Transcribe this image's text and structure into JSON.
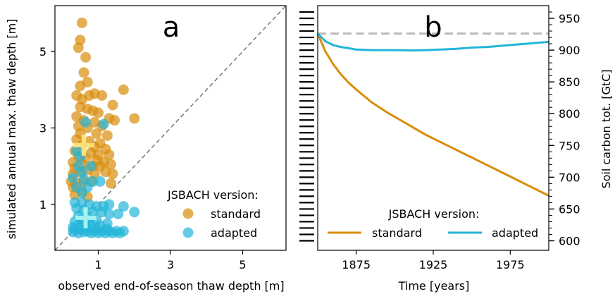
{
  "chart_data": [
    {
      "panel_label": "a",
      "type": "scatter",
      "xlabel": "observed end-of-season thaw depth [m]",
      "ylabel": "simulated annual max. thaw depth [m]",
      "xlim": [
        -0.2,
        6.2
      ],
      "ylim": [
        -0.2,
        6.2
      ],
      "xticks": [
        1,
        3,
        5
      ],
      "yticks": [
        1,
        3,
        5
      ],
      "grid": false,
      "legend_title": "JSBACH version:",
      "legend_position": "bottom-right",
      "reference_line": "1:1 dashed",
      "series": [
        {
          "name": "standard",
          "color": "#d88d0a",
          "mean_marker": [
            0.6,
            2.55
          ],
          "points": [
            [
              0.55,
              5.75
            ],
            [
              0.5,
              5.3
            ],
            [
              0.45,
              5.1
            ],
            [
              0.65,
              4.85
            ],
            [
              0.6,
              4.45
            ],
            [
              0.5,
              4.1
            ],
            [
              0.7,
              4.2
            ],
            [
              0.4,
              3.85
            ],
            [
              0.55,
              3.75
            ],
            [
              0.75,
              3.85
            ],
            [
              0.9,
              3.9
            ],
            [
              1.1,
              3.85
            ],
            [
              1.7,
              4.0
            ],
            [
              1.4,
              3.6
            ],
            [
              0.5,
              3.55
            ],
            [
              0.7,
              3.5
            ],
            [
              0.85,
              3.45
            ],
            [
              1.0,
              3.4
            ],
            [
              1.3,
              3.25
            ],
            [
              2.0,
              3.25
            ],
            [
              1.45,
              3.2
            ],
            [
              0.4,
              3.3
            ],
            [
              0.6,
              3.2
            ],
            [
              0.9,
              3.15
            ],
            [
              1.1,
              3.05
            ],
            [
              0.45,
              3.05
            ],
            [
              0.7,
              3.0
            ],
            [
              0.5,
              2.85
            ],
            [
              0.95,
              2.85
            ],
            [
              1.25,
              2.8
            ],
            [
              0.4,
              2.7
            ],
            [
              0.75,
              2.65
            ],
            [
              1.05,
              2.6
            ],
            [
              0.55,
              2.55
            ],
            [
              0.9,
              2.5
            ],
            [
              1.2,
              2.45
            ],
            [
              0.35,
              2.4
            ],
            [
              0.8,
              2.35
            ],
            [
              1.0,
              2.3
            ],
            [
              1.3,
              2.3
            ],
            [
              0.45,
              2.25
            ],
            [
              0.65,
              2.2
            ],
            [
              0.95,
              2.15
            ],
            [
              1.15,
              2.1
            ],
            [
              0.3,
              2.1
            ],
            [
              0.55,
              2.05
            ],
            [
              0.85,
              2.0
            ],
            [
              1.05,
              2.0
            ],
            [
              1.35,
              2.05
            ],
            [
              0.35,
              1.95
            ],
            [
              0.7,
              1.9
            ],
            [
              1.2,
              1.85
            ],
            [
              0.5,
              1.85
            ],
            [
              0.3,
              1.8
            ],
            [
              0.9,
              1.8
            ],
            [
              1.4,
              1.8
            ],
            [
              1.35,
              1.55
            ],
            [
              0.4,
              1.55
            ],
            [
              0.6,
              1.6
            ],
            [
              0.8,
              1.6
            ],
            [
              0.3,
              1.45
            ],
            [
              0.55,
              1.35
            ],
            [
              0.35,
              1.25
            ],
            [
              0.7,
              1.2
            ],
            [
              0.25,
              1.6
            ]
          ]
        },
        {
          "name": "adapted",
          "color": "#24b5d9",
          "mean_marker": [
            0.65,
            0.65
          ],
          "points": [
            [
              0.4,
              2.4
            ],
            [
              0.5,
              2.25
            ],
            [
              0.65,
              3.15
            ],
            [
              1.15,
              3.1
            ],
            [
              0.45,
              2.0
            ],
            [
              0.8,
              2.0
            ],
            [
              0.55,
              1.85
            ],
            [
              0.3,
              1.7
            ],
            [
              0.6,
              1.65
            ],
            [
              0.85,
              1.6
            ],
            [
              1.05,
              1.6
            ],
            [
              0.4,
              1.45
            ],
            [
              0.7,
              1.45
            ],
            [
              0.55,
              1.3
            ],
            [
              0.35,
              1.05
            ],
            [
              0.55,
              1.05
            ],
            [
              0.75,
              1.0
            ],
            [
              0.95,
              0.95
            ],
            [
              1.15,
              0.95
            ],
            [
              1.3,
              1.0
            ],
            [
              1.7,
              0.95
            ],
            [
              2.0,
              0.8
            ],
            [
              0.4,
              0.9
            ],
            [
              0.6,
              0.85
            ],
            [
              0.85,
              0.8
            ],
            [
              1.1,
              0.8
            ],
            [
              1.3,
              0.75
            ],
            [
              1.55,
              0.75
            ],
            [
              0.45,
              0.7
            ],
            [
              0.7,
              0.65
            ],
            [
              0.95,
              0.6
            ],
            [
              0.35,
              0.55
            ],
            [
              0.55,
              0.5
            ],
            [
              0.8,
              0.45
            ],
            [
              1.05,
              0.45
            ],
            [
              1.25,
              0.5
            ],
            [
              0.3,
              0.4
            ],
            [
              0.5,
              0.35
            ],
            [
              0.7,
              0.3
            ],
            [
              0.9,
              0.3
            ],
            [
              1.1,
              0.3
            ],
            [
              1.3,
              0.3
            ],
            [
              1.5,
              0.3
            ],
            [
              1.7,
              0.3
            ],
            [
              0.3,
              0.28
            ],
            [
              0.45,
              0.25
            ],
            [
              0.6,
              0.28
            ],
            [
              0.8,
              0.25
            ],
            [
              1.0,
              0.25
            ],
            [
              1.2,
              0.25
            ],
            [
              1.4,
              0.25
            ],
            [
              1.6,
              0.25
            ],
            [
              0.35,
              0.35
            ],
            [
              0.65,
              0.4
            ],
            [
              0.95,
              0.38
            ],
            [
              1.25,
              0.35
            ],
            [
              0.5,
              0.6
            ],
            [
              0.75,
              0.55
            ]
          ]
        }
      ]
    },
    {
      "panel_label": "b",
      "type": "line",
      "xlabel": "Time [years]",
      "ylabel": "Soil carbon tot. [GtC]",
      "xlim": [
        1850,
        2000
      ],
      "ylim": [
        585,
        970
      ],
      "xticks": [
        1875,
        1925,
        1975
      ],
      "yticks": [
        600,
        650,
        700,
        750,
        800,
        850,
        900,
        950
      ],
      "grid": false,
      "legend_title": "JSBACH version:",
      "legend_position": "bottom-center",
      "reference_line": {
        "y": 926,
        "style": "dashed",
        "color": "#bbbbbb"
      },
      "series": [
        {
          "name": "standard",
          "color": "#d88d0a",
          "x": [
            1850,
            1855,
            1860,
            1865,
            1870,
            1875,
            1880,
            1885,
            1890,
            1895,
            1900,
            1905,
            1910,
            1915,
            1920,
            1925,
            1930,
            1935,
            1940,
            1945,
            1950,
            1955,
            1960,
            1965,
            1970,
            1975,
            1980,
            1985,
            1990,
            1995,
            2000
          ],
          "values": [
            926,
            898,
            878,
            862,
            849,
            838,
            828,
            818,
            810,
            802,
            795,
            788,
            781,
            774,
            767,
            761,
            755,
            749,
            743,
            737,
            731,
            725,
            719,
            713,
            707,
            701,
            695,
            689,
            683,
            677,
            671
          ]
        },
        {
          "name": "adapted",
          "color": "#24b5d9",
          "x": [
            1850,
            1855,
            1860,
            1865,
            1870,
            1875,
            1880,
            1885,
            1890,
            1895,
            1900,
            1905,
            1910,
            1915,
            1920,
            1925,
            1930,
            1935,
            1940,
            1945,
            1950,
            1955,
            1960,
            1965,
            1970,
            1975,
            1980,
            1985,
            1990,
            1995,
            2000
          ],
          "values": [
            926,
            914,
            908,
            905,
            903,
            901,
            900.5,
            900,
            900,
            900,
            900,
            899.8,
            899.6,
            899.7,
            900,
            900.5,
            901,
            901.5,
            902,
            903,
            904,
            904.5,
            905,
            906,
            907,
            908,
            909,
            910,
            911,
            912,
            913
          ]
        }
      ]
    }
  ]
}
